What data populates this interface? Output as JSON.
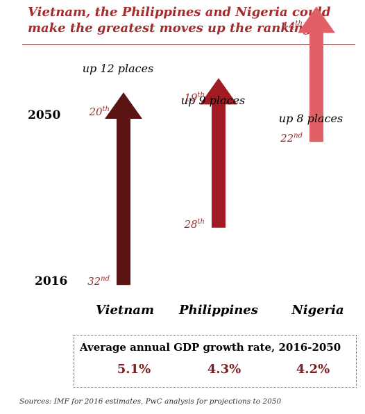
{
  "title": "Vietnam, the Philippines and Nigeria could make the greatest moves up the rankings",
  "chart_data": {
    "type": "bar",
    "year_labels": [
      "2050",
      "2016"
    ],
    "categories": [
      "Vietnam",
      "Philippines",
      "Nigeria"
    ],
    "series": [
      {
        "rank_2016": 32,
        "rank_2016_label": "32",
        "rank_2016_suffix": "nd",
        "rank_2050": 20,
        "rank_2050_label": "20",
        "rank_2050_suffix": "th",
        "move_label": "up 12 places",
        "color": "#5a1414"
      },
      {
        "rank_2016": 28,
        "rank_2016_label": "28",
        "rank_2016_suffix": "th",
        "rank_2050": 19,
        "rank_2050_label": "19",
        "rank_2050_suffix": "th",
        "move_label": "up 9 places",
        "color": "#a01c22"
      },
      {
        "rank_2016": 22,
        "rank_2016_label": "22",
        "rank_2016_suffix": "nd",
        "rank_2050": 14,
        "rank_2050_label": "14",
        "rank_2050_suffix": "th",
        "move_label": "up 8 places",
        "color": "#e06065"
      }
    ],
    "label_color": "#a32d2d"
  },
  "gdp": {
    "title": "Average annual GDP growth rate, 2016-2050",
    "values": [
      "5.1%",
      "4.3%",
      "4.2%"
    ]
  },
  "sources": "Sources: IMF for 2016 estimates, PwC analysis for projections to 2050"
}
